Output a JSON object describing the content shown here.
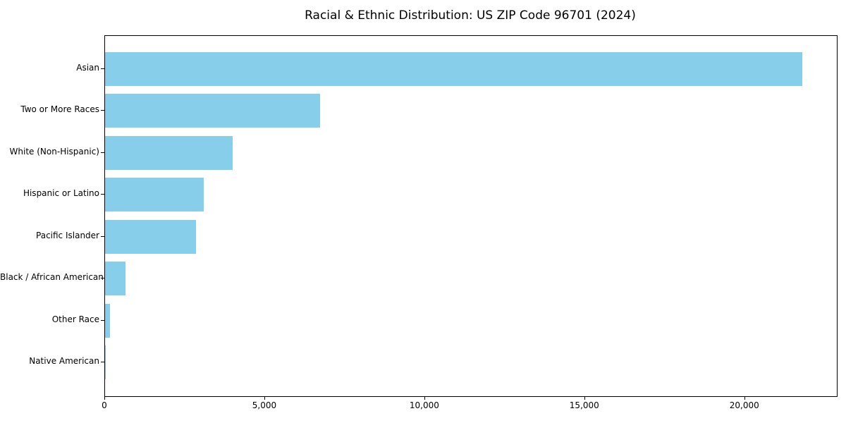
{
  "chart_data": {
    "type": "bar",
    "orientation": "horizontal",
    "title": "Racial & Ethnic Distribution: US ZIP Code 96701 (2024)",
    "categories": [
      "Asian",
      "Two or More Races",
      "White (Non-Hispanic)",
      "Hispanic or Latino",
      "Pacific Islander",
      "Black / African American",
      "Other Race",
      "Native American"
    ],
    "values": [
      21780,
      6720,
      3990,
      3080,
      2840,
      640,
      150,
      30
    ],
    "bar_color": "#87CEEB",
    "xlabel": "",
    "ylabel": "",
    "xlim": [
      0,
      22870
    ],
    "xticks": [
      0,
      5000,
      10000,
      15000,
      20000
    ],
    "xtick_labels": [
      "0",
      "5,000",
      "10,000",
      "15,000",
      "20,000"
    ],
    "grid": false,
    "legend": "none",
    "sort_order": "descending",
    "text_color": "#000000",
    "spine_color": "#000000"
  }
}
